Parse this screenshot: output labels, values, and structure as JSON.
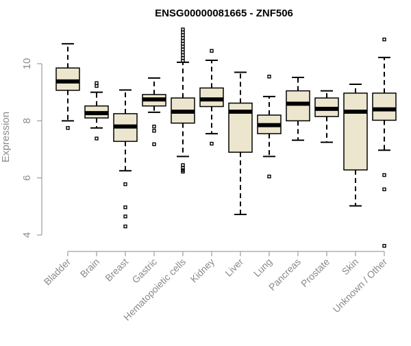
{
  "chart_data": {
    "type": "boxplot",
    "title": "ENSG00000081665 - ZNF506",
    "ylabel": "Expression",
    "xlabel": "",
    "ylim": [
      3.4,
      11.3
    ],
    "yticks": [
      4,
      6,
      8,
      10
    ],
    "grid": false,
    "colors": {
      "box_fill": "#ede6cf",
      "box_stroke": "#000000",
      "median": "#000000",
      "axis": "#8a8a8a"
    },
    "categories": [
      "Bladder",
      "Brain",
      "Breast",
      "Gastric",
      "Hematopoietic cells",
      "Kidney",
      "Liver",
      "Lung",
      "Pancreas",
      "Prostate",
      "Skin",
      "Unknown / Other"
    ],
    "boxes": [
      {
        "category": "Bladder",
        "whisker_low": 8.0,
        "q1": 9.07,
        "median": 9.38,
        "q3": 9.85,
        "whisker_high": 10.7,
        "outliers": [
          7.75
        ]
      },
      {
        "category": "Brain",
        "whisker_low": 7.75,
        "q1": 8.1,
        "median": 8.27,
        "q3": 8.52,
        "whisker_high": 9.0,
        "outliers": [
          7.38,
          9.22,
          9.32
        ]
      },
      {
        "category": "Breast",
        "whisker_low": 6.25,
        "q1": 7.28,
        "median": 7.8,
        "q3": 8.25,
        "whisker_high": 9.08,
        "outliers": [
          5.78,
          4.97,
          4.65,
          4.3
        ]
      },
      {
        "category": "Gastric",
        "whisker_low": 8.3,
        "q1": 8.52,
        "median": 8.75,
        "q3": 8.92,
        "whisker_high": 9.5,
        "outliers": [
          7.8,
          7.65,
          7.18
        ]
      },
      {
        "category": "Hematopoietic cells",
        "whisker_low": 6.75,
        "q1": 7.92,
        "median": 8.32,
        "q3": 8.8,
        "whisker_high": 10.05,
        "outliers": [
          6.45,
          6.35,
          6.27,
          6.22,
          10.1,
          10.2,
          10.3,
          10.4,
          10.5,
          10.6,
          10.7,
          10.8,
          10.9,
          11.0,
          11.1,
          11.2
        ]
      },
      {
        "category": "Kidney",
        "whisker_low": 7.55,
        "q1": 8.5,
        "median": 8.75,
        "q3": 9.15,
        "whisker_high": 10.12,
        "outliers": [
          7.2,
          10.45
        ]
      },
      {
        "category": "Liver",
        "whisker_low": 4.72,
        "q1": 6.9,
        "median": 8.32,
        "q3": 8.62,
        "whisker_high": 9.7,
        "outliers": []
      },
      {
        "category": "Lung",
        "whisker_low": 6.75,
        "q1": 7.55,
        "median": 7.85,
        "q3": 8.2,
        "whisker_high": 8.85,
        "outliers": [
          6.05,
          9.55
        ]
      },
      {
        "category": "Pancreas",
        "whisker_low": 7.32,
        "q1": 8.0,
        "median": 8.6,
        "q3": 9.05,
        "whisker_high": 9.52,
        "outliers": []
      },
      {
        "category": "Prostate",
        "whisker_low": 7.25,
        "q1": 8.15,
        "median": 8.42,
        "q3": 8.8,
        "whisker_high": 9.05,
        "outliers": []
      },
      {
        "category": "Skin",
        "whisker_low": 5.02,
        "q1": 6.28,
        "median": 8.32,
        "q3": 8.97,
        "whisker_high": 9.28,
        "outliers": []
      },
      {
        "category": "Unknown / Other",
        "whisker_low": 6.97,
        "q1": 8.02,
        "median": 8.4,
        "q3": 8.97,
        "whisker_high": 10.22,
        "outliers": [
          6.1,
          5.6,
          3.62,
          10.85
        ]
      }
    ]
  }
}
